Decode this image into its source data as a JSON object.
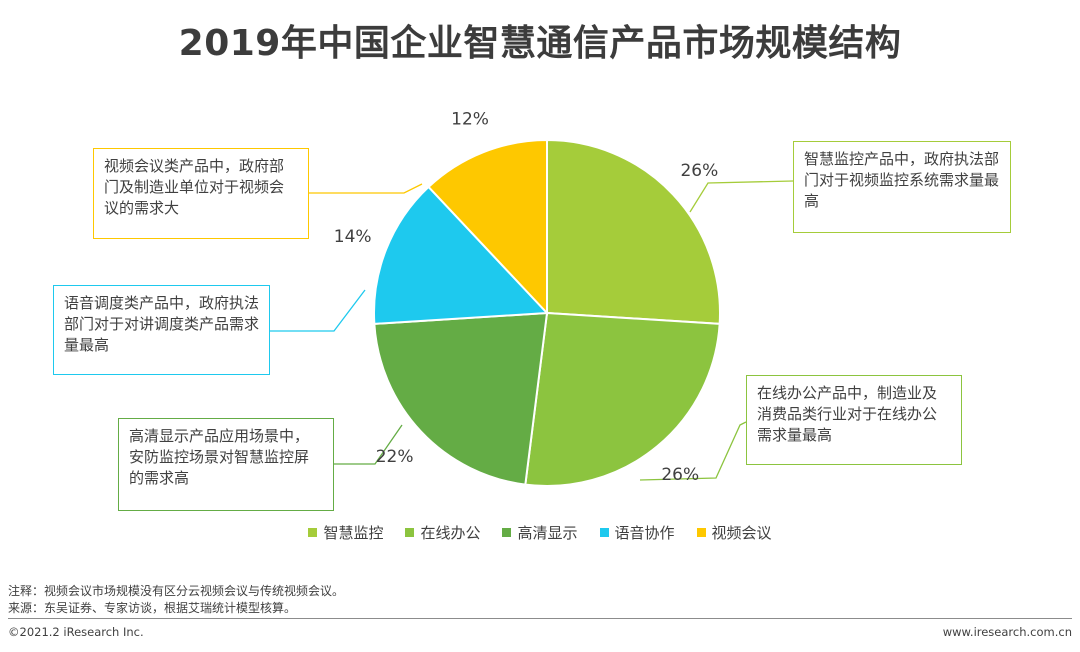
{
  "chart_data": {
    "type": "pie",
    "title": "2019年中国企业智慧通信产品市场规模结构",
    "categories": [
      "智慧监控",
      "在线办公",
      "高清显示",
      "语音协作",
      "视频会议"
    ],
    "values": [
      26,
      26,
      22,
      14,
      12
    ],
    "value_labels": [
      "26%",
      "26%",
      "22%",
      "14%",
      "12%"
    ],
    "colors": [
      "#a5cc3a",
      "#8cc43f",
      "#64ac45",
      "#1ec9ee",
      "#fec800"
    ],
    "legend_position": "bottom",
    "annotations": [
      {
        "category": "智慧监控",
        "text": "智慧监控产品中，政府执法部门对于视频监控系统需求量最高"
      },
      {
        "category": "在线办公",
        "text": "在线办公产品中，制造业及消费品类行业对于在线办公需求量最高"
      },
      {
        "category": "高清显示",
        "text": "高清显示产品应用场景中，安防监控场景对智慧监控屏的需求高"
      },
      {
        "category": "语音协作",
        "text": "语音调度类产品中，政府执法部门对于对讲调度类产品需求量最高"
      },
      {
        "category": "视频会议",
        "text": "视频会议类产品中，政府部门及制造业单位对于视频会议的需求大"
      }
    ]
  },
  "notes": {
    "note": "注释：视频会议市场规模没有区分云视频会议与传统视频会议。",
    "source": "来源：东吴证券、专家访谈，根据艾瑞统计模型核算。"
  },
  "footer": {
    "copyright": "©2021.2 iResearch Inc.",
    "url": "www.iresearch.com.cn"
  }
}
